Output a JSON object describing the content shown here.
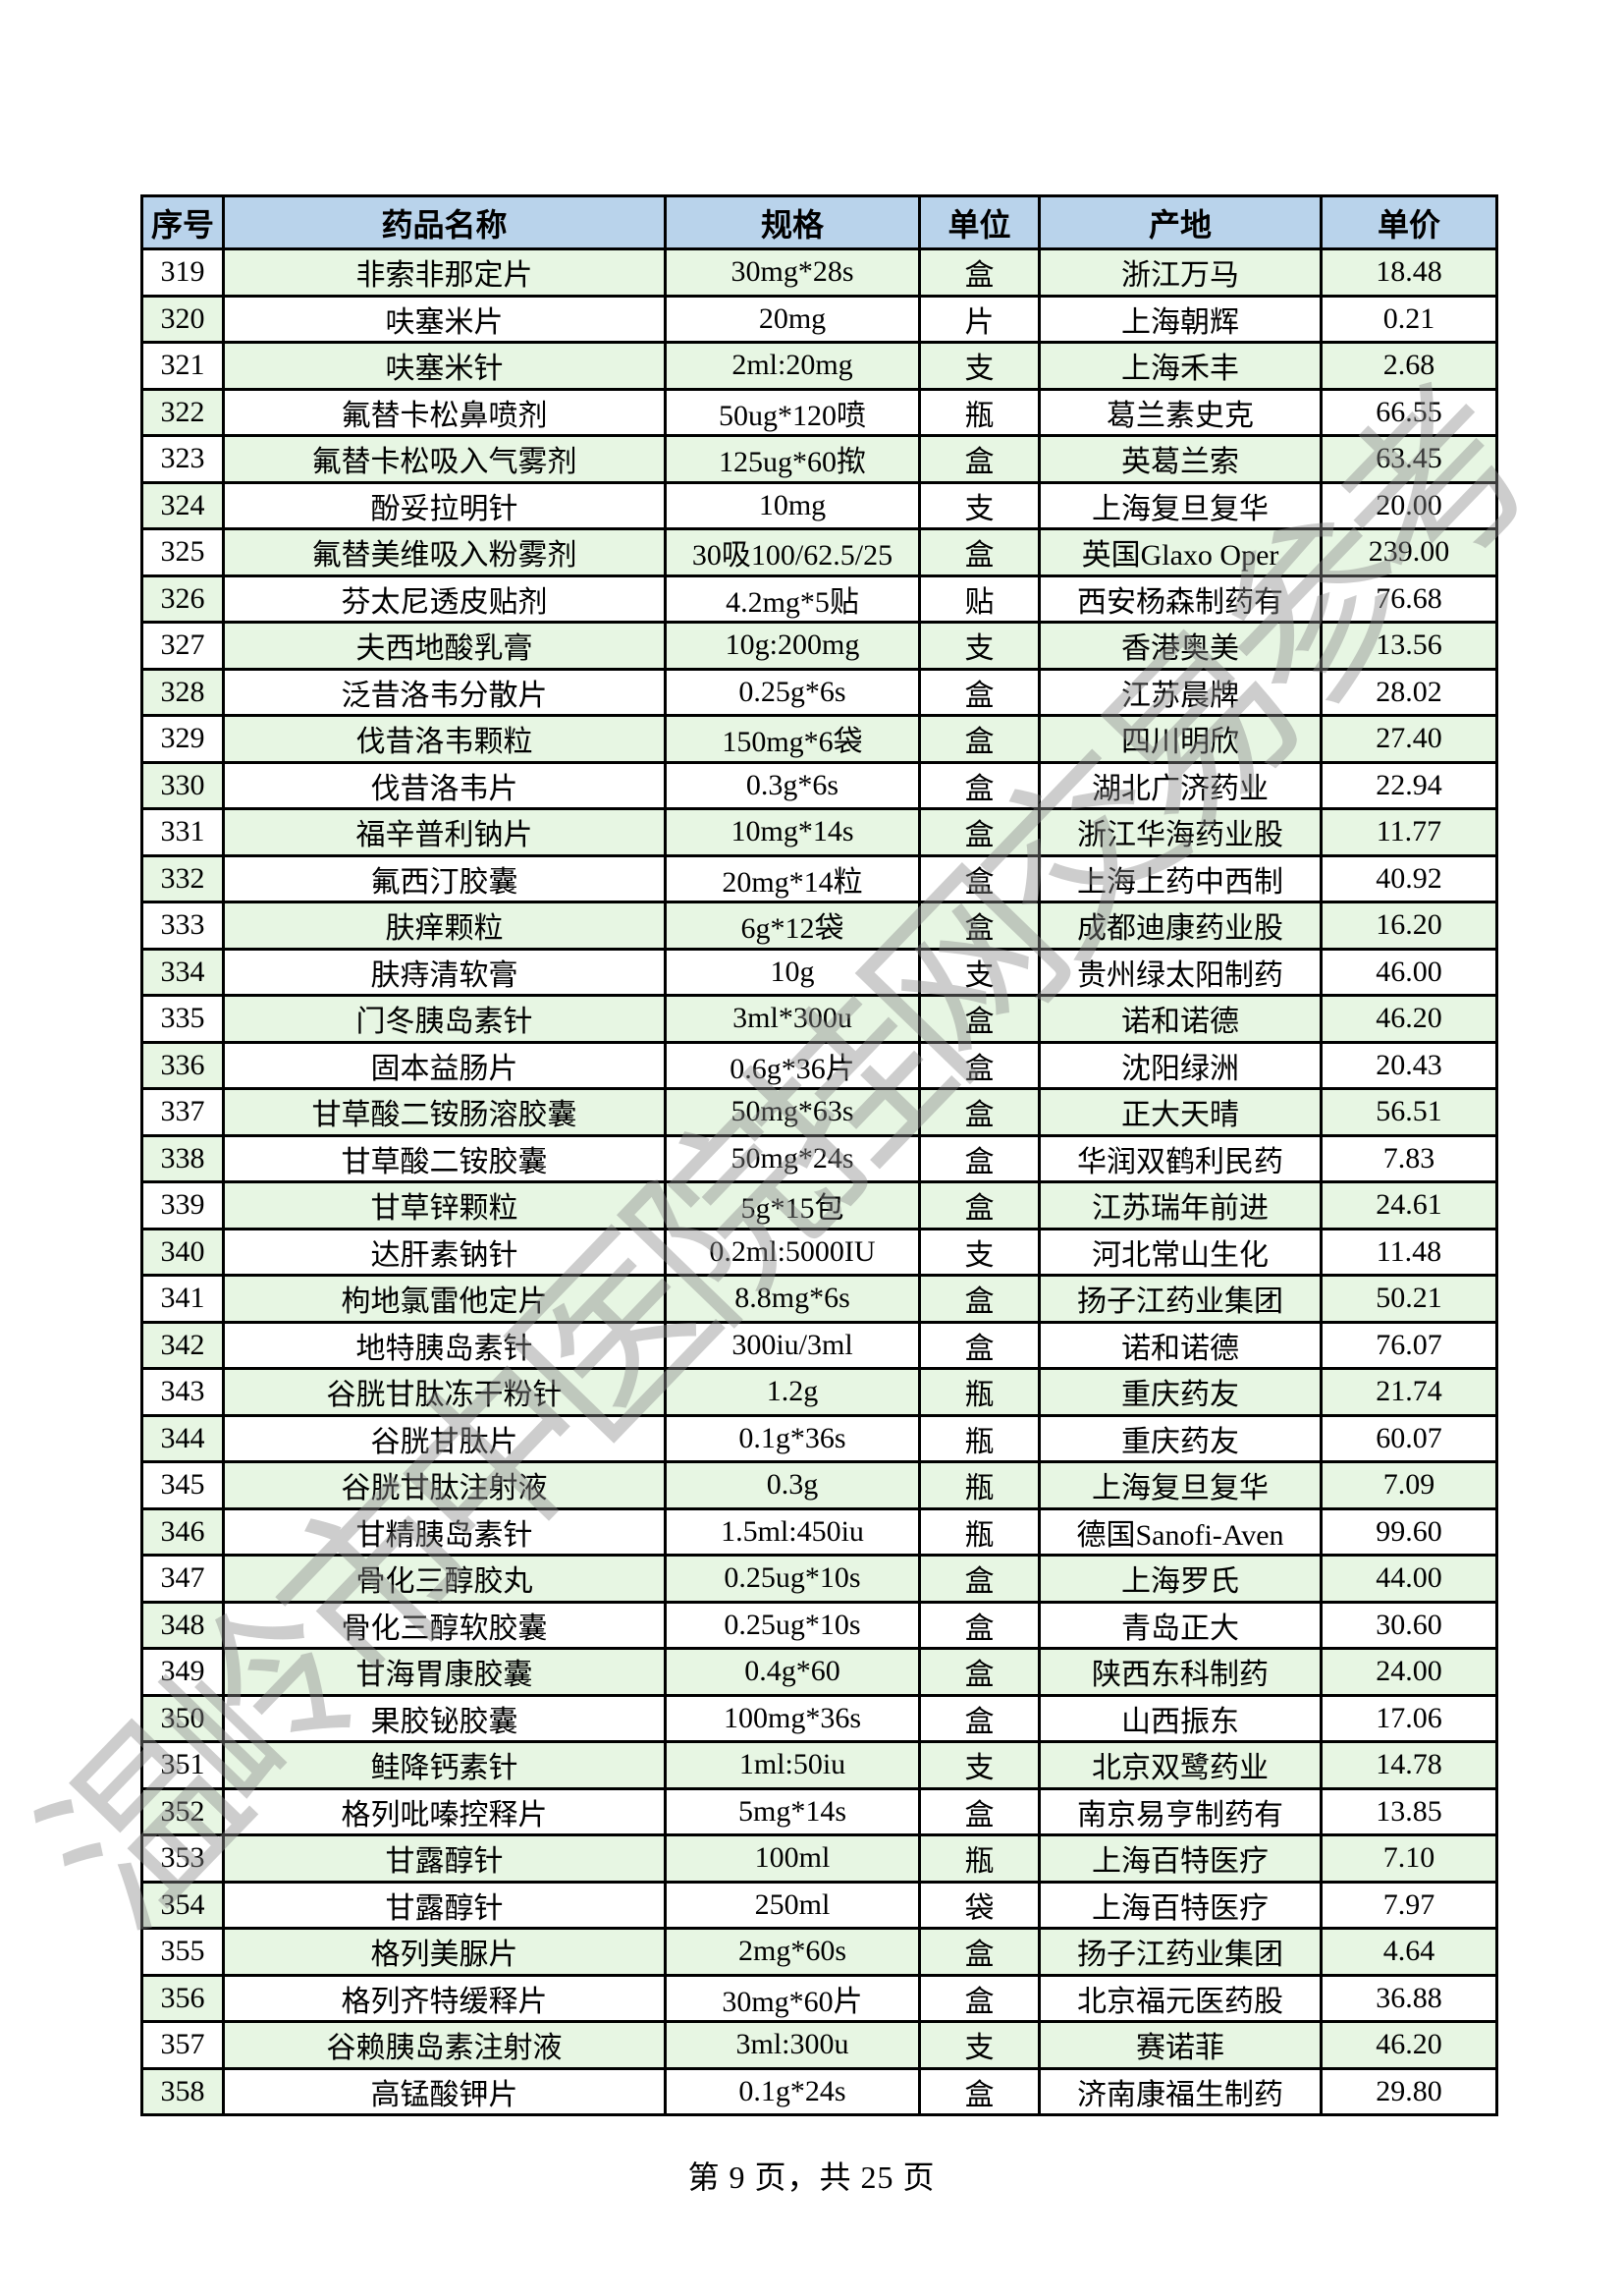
{
  "page": {
    "footer": "第 9 页，共 25 页"
  },
  "watermark": {
    "text": "温岭市中医院挂网交易参考"
  },
  "colors": {
    "header_bg": "#b9d3eb",
    "row_green": "#e7f6e3",
    "row_white": "#ffffff",
    "border_color": "#000000",
    "watermark_color": "#8a8a8a"
  },
  "table": {
    "columns": [
      "序号",
      "药品名称",
      "规格",
      "单位",
      "产地",
      "单价"
    ],
    "rows": [
      [
        "319",
        "非索非那定片",
        "30mg*28s",
        "盒",
        "浙江万马",
        "18.48"
      ],
      [
        "320",
        "呋塞米片",
        "20mg",
        "片",
        "上海朝辉",
        "0.21"
      ],
      [
        "321",
        "呋塞米针",
        "2ml:20mg",
        "支",
        "上海禾丰",
        "2.68"
      ],
      [
        "322",
        "氟替卡松鼻喷剂",
        "50ug*120喷",
        "瓶",
        "葛兰素史克",
        "66.55"
      ],
      [
        "323",
        "氟替卡松吸入气雾剂",
        "125ug*60揿",
        "盒",
        "英葛兰索",
        "63.45"
      ],
      [
        "324",
        "酚妥拉明针",
        "10mg",
        "支",
        "上海复旦复华",
        "20.00"
      ],
      [
        "325",
        "氟替美维吸入粉雾剂",
        "30吸100/62.5/25",
        "盒",
        "英国Glaxo Oper",
        "239.00"
      ],
      [
        "326",
        "芬太尼透皮贴剂",
        "4.2mg*5贴",
        "贴",
        "西安杨森制药有",
        "76.68"
      ],
      [
        "327",
        "夫西地酸乳膏",
        "10g:200mg",
        "支",
        "香港奥美",
        "13.56"
      ],
      [
        "328",
        "泛昔洛韦分散片",
        "0.25g*6s",
        "盒",
        "江苏晨牌",
        "28.02"
      ],
      [
        "329",
        "伐昔洛韦颗粒",
        "150mg*6袋",
        "盒",
        "四川明欣",
        "27.40"
      ],
      [
        "330",
        "伐昔洛韦片",
        "0.3g*6s",
        "盒",
        "湖北广济药业",
        "22.94"
      ],
      [
        "331",
        "福辛普利钠片",
        "10mg*14s",
        "盒",
        "浙江华海药业股",
        "11.77"
      ],
      [
        "332",
        "氟西汀胶囊",
        "20mg*14粒",
        "盒",
        "上海上药中西制",
        "40.92"
      ],
      [
        "333",
        "肤痒颗粒",
        "6g*12袋",
        "盒",
        "成都迪康药业股",
        "16.20"
      ],
      [
        "334",
        "肤痔清软膏",
        "10g",
        "支",
        "贵州绿太阳制药",
        "46.00"
      ],
      [
        "335",
        "门冬胰岛素针",
        "3ml*300u",
        "盒",
        "诺和诺德",
        "46.20"
      ],
      [
        "336",
        "固本益肠片",
        "0.6g*36片",
        "盒",
        "沈阳绿洲",
        "20.43"
      ],
      [
        "337",
        "甘草酸二铵肠溶胶囊",
        "50mg*63s",
        "盒",
        "正大天晴",
        "56.51"
      ],
      [
        "338",
        "甘草酸二铵胶囊",
        "50mg*24s",
        "盒",
        "华润双鹤利民药",
        "7.83"
      ],
      [
        "339",
        "甘草锌颗粒",
        "5g*15包",
        "盒",
        "江苏瑞年前进",
        "24.61"
      ],
      [
        "340",
        "达肝素钠针",
        "0.2ml:5000IU",
        "支",
        "河北常山生化",
        "11.48"
      ],
      [
        "341",
        "枸地氯雷他定片",
        "8.8mg*6s",
        "盒",
        "扬子江药业集团",
        "50.21"
      ],
      [
        "342",
        "地特胰岛素针",
        "300iu/3ml",
        "盒",
        "诺和诺德",
        "76.07"
      ],
      [
        "343",
        "谷胱甘肽冻干粉针",
        "1.2g",
        "瓶",
        "重庆药友",
        "21.74"
      ],
      [
        "344",
        "谷胱甘肽片",
        "0.1g*36s",
        "瓶",
        "重庆药友",
        "60.07"
      ],
      [
        "345",
        "谷胱甘肽注射液",
        "0.3g",
        "瓶",
        "上海复旦复华",
        "7.09"
      ],
      [
        "346",
        "甘精胰岛素针",
        "1.5ml:450iu",
        "瓶",
        "德国Sanofi-Aven",
        "99.60"
      ],
      [
        "347",
        "骨化三醇胶丸",
        "0.25ug*10s",
        "盒",
        "上海罗氏",
        "44.00"
      ],
      [
        "348",
        "骨化三醇软胶囊",
        "0.25ug*10s",
        "盒",
        "青岛正大",
        "30.60"
      ],
      [
        "349",
        "甘海胃康胶囊",
        "0.4g*60",
        "盒",
        "陕西东科制药",
        "24.00"
      ],
      [
        "350",
        "果胶铋胶囊",
        "100mg*36s",
        "盒",
        "山西振东",
        "17.06"
      ],
      [
        "351",
        "鲑降钙素针",
        "1ml:50iu",
        "支",
        "北京双鹭药业",
        "14.78"
      ],
      [
        "352",
        "格列吡嗪控释片",
        "5mg*14s",
        "盒",
        "南京易亨制药有",
        "13.85"
      ],
      [
        "353",
        "甘露醇针",
        "100ml",
        "瓶",
        "上海百特医疗",
        "7.10"
      ],
      [
        "354",
        "甘露醇针",
        "250ml",
        "袋",
        "上海百特医疗",
        "7.97"
      ],
      [
        "355",
        "格列美脲片",
        "2mg*60s",
        "盒",
        "扬子江药业集团",
        "4.64"
      ],
      [
        "356",
        "格列齐特缓释片",
        "30mg*60片",
        "盒",
        "北京福元医药股",
        "36.88"
      ],
      [
        "357",
        "谷赖胰岛素注射液",
        "3ml:300u",
        "支",
        "赛诺菲",
        "46.20"
      ],
      [
        "358",
        "高锰酸钾片",
        "0.1g*24s",
        "盒",
        "济南康福生制药",
        "29.80"
      ]
    ]
  }
}
